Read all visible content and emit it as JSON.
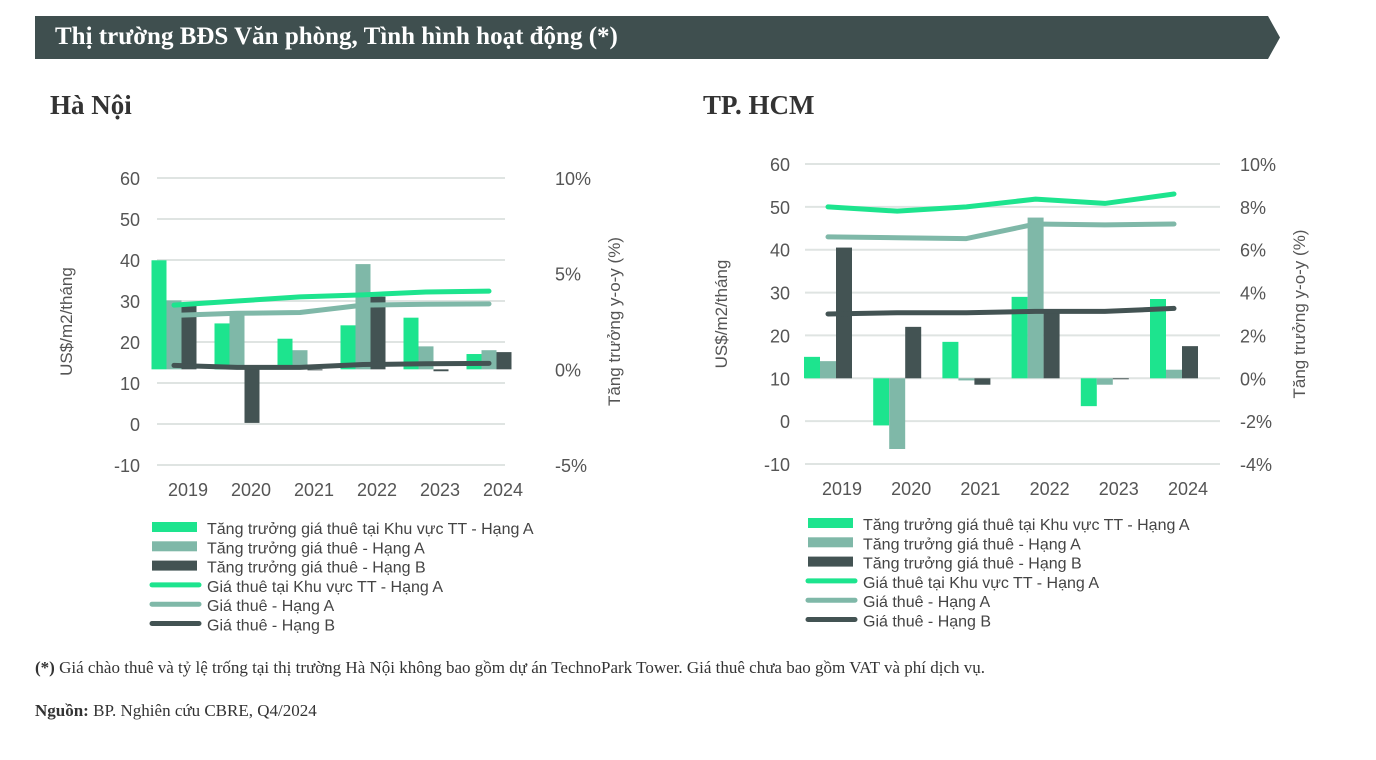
{
  "header": {
    "title": "Thị trường BĐS Văn phòng, Tình hình hoạt động (*)"
  },
  "colors": {
    "central_a": "#1de48e",
    "grade_a": "#7fb8a8",
    "grade_b": "#435353",
    "header_bg": "#3f4f4f"
  },
  "chart_data": [
    {
      "type": "bar+line",
      "title": "Hà Nội",
      "categories": [
        "2019",
        "2020",
        "2021",
        "2022",
        "2023",
        "2024"
      ],
      "ylabel": "US$/m2/tháng",
      "y2label": "Tăng trưởng y-o-y (%)",
      "ylim": [
        -10,
        60
      ],
      "yticks": [
        "60",
        "50",
        "40",
        "30",
        "20",
        "10",
        "0",
        "-10"
      ],
      "y2lim": [
        -5,
        10
      ],
      "y2ticks": [
        "10%",
        "5%",
        "0%",
        "-5%"
      ],
      "grid": true,
      "legend": "bottom",
      "bars": [
        {
          "name": "Tăng trưởng giá thuê tại Khu vực TT - Hạng A",
          "values": [
            5.7,
            2.4,
            1.6,
            2.3,
            2.7,
            0.8
          ]
        },
        {
          "name": "Tăng trưởng giá thuê - Hạng A",
          "values": [
            3.6,
            2.9,
            1.0,
            5.5,
            1.2,
            1.0
          ]
        },
        {
          "name": "Tăng trưởng giá thuê - Hạng B",
          "values": [
            3.4,
            -2.8,
            0.0,
            3.8,
            -0.1,
            0.9
          ]
        }
      ],
      "lines": [
        {
          "name": "Giá thuê tại Khu vực TT - Hạng A",
          "values": [
            29,
            30,
            31,
            31.5,
            32.2,
            32.4
          ]
        },
        {
          "name": "Giá thuê - Hạng A",
          "values": [
            26.5,
            27,
            27.2,
            29,
            29.2,
            29.3
          ]
        },
        {
          "name": "Giá thuê - Hạng B",
          "values": [
            14.3,
            13.8,
            13.8,
            14.5,
            14.7,
            14.8
          ]
        }
      ]
    },
    {
      "type": "bar+line",
      "title": "TP. HCM",
      "categories": [
        "2019",
        "2020",
        "2021",
        "2022",
        "2023",
        "2024"
      ],
      "ylabel": "US$/m2/tháng",
      "y2label": "Tăng trưởng y-o-y (%)",
      "ylim": [
        -10,
        60
      ],
      "yticks": [
        "60",
        "50",
        "40",
        "30",
        "20",
        "10",
        "0",
        "-10"
      ],
      "y2lim": [
        -4,
        10
      ],
      "y2ticks": [
        "10%",
        "8%",
        "6%",
        "4%",
        "2%",
        "0%",
        "-2%",
        "-4%"
      ],
      "grid": true,
      "legend": "bottom",
      "bars": [
        {
          "name": "Tăng trưởng giá thuê tại Khu vực TT - Hạng A",
          "values": [
            1.0,
            -2.2,
            1.7,
            3.8,
            -1.3,
            3.7
          ]
        },
        {
          "name": "Tăng trưởng giá thuê - Hạng A",
          "values": [
            0.8,
            -3.3,
            -0.1,
            7.5,
            -0.3,
            0.4
          ]
        },
        {
          "name": "Tăng trưởng giá thuê - Hạng B",
          "values": [
            6.1,
            2.4,
            -0.3,
            3.1,
            0.0,
            1.5
          ]
        }
      ],
      "lines": [
        {
          "name": "Giá thuê tại Khu vực TT - Hạng A",
          "values": [
            50,
            49,
            50,
            51.8,
            50.8,
            53
          ]
        },
        {
          "name": "Giá thuê - Hạng A",
          "values": [
            43,
            42.8,
            42.6,
            46,
            45.8,
            46
          ]
        },
        {
          "name": "Giá thuê - Hạng B",
          "values": [
            25,
            25.3,
            25.3,
            25.6,
            25.6,
            26.3
          ]
        }
      ]
    }
  ],
  "footnote": {
    "mark": "(*)",
    "text": " Giá chào thuê và tỷ lệ trống tại thị trường Hà Nội không bao gồm dự án TechnoPark Tower. Giá thuê chưa bao gồm VAT và phí dịch vụ."
  },
  "source": {
    "label": "Nguồn:",
    "text": " BP. Nghiên cứu CBRE, Q4/2024"
  }
}
